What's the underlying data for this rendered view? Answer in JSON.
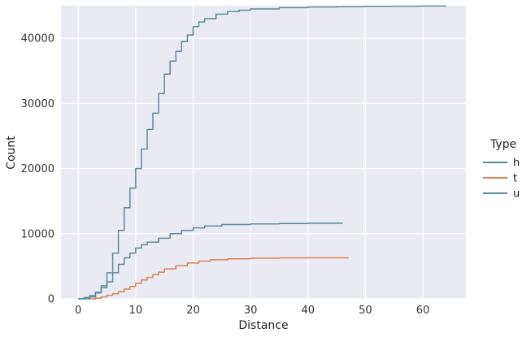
{
  "chart_data": {
    "type": "line",
    "subtype": "cumulative step (ECDF counts)",
    "xlabel": "Distance",
    "ylabel": "Count",
    "xlim": [
      -3,
      67.5
    ],
    "ylim": [
      0,
      45000
    ],
    "x_ticks": [
      0,
      10,
      20,
      30,
      40,
      50,
      60
    ],
    "y_ticks": [
      0,
      10000,
      20000,
      30000,
      40000
    ],
    "grid": true,
    "background": "#e9eaf2",
    "legend": {
      "title": "Type",
      "position": "right"
    },
    "series": [
      {
        "name": "h",
        "color": "#5e8b96",
        "x": [
          0,
          1,
          2,
          3,
          4,
          5,
          6,
          7,
          8,
          9,
          10,
          11,
          12,
          14,
          16,
          18,
          20,
          22,
          25,
          30,
          35,
          40,
          46
        ],
        "y": [
          0,
          200,
          500,
          1000,
          1700,
          2600,
          4000,
          5300,
          6300,
          7000,
          7800,
          8300,
          8700,
          9300,
          10000,
          10500,
          10900,
          11200,
          11400,
          11500,
          11550,
          11600,
          11650
        ]
      },
      {
        "name": "t",
        "color": "#d9825b",
        "x": [
          2,
          3,
          4,
          5,
          6,
          7,
          8,
          9,
          10,
          11,
          12,
          13,
          14,
          15,
          17,
          19,
          21,
          23,
          26,
          30,
          35,
          40,
          47
        ],
        "y": [
          0,
          100,
          300,
          550,
          800,
          1100,
          1500,
          1900,
          2400,
          2900,
          3300,
          3700,
          4100,
          4600,
          5100,
          5500,
          5800,
          6000,
          6150,
          6250,
          6280,
          6300,
          6320
        ]
      },
      {
        "name": "u",
        "color": "#5e8b96",
        "x": [
          0,
          2,
          3,
          4,
          5,
          6,
          7,
          8,
          9,
          10,
          11,
          12,
          13,
          14,
          15,
          16,
          17,
          18,
          19,
          20,
          21,
          22,
          24,
          26,
          28,
          30,
          35,
          40,
          45,
          50,
          55,
          60,
          64
        ],
        "y": [
          0,
          300,
          900,
          2000,
          4000,
          7000,
          10500,
          14000,
          17000,
          20000,
          23000,
          26000,
          28500,
          31500,
          34500,
          36500,
          38000,
          39500,
          40500,
          41800,
          42500,
          43000,
          43700,
          44100,
          44300,
          44500,
          44700,
          44800,
          44850,
          44900,
          44930,
          44950,
          44960
        ]
      }
    ]
  }
}
